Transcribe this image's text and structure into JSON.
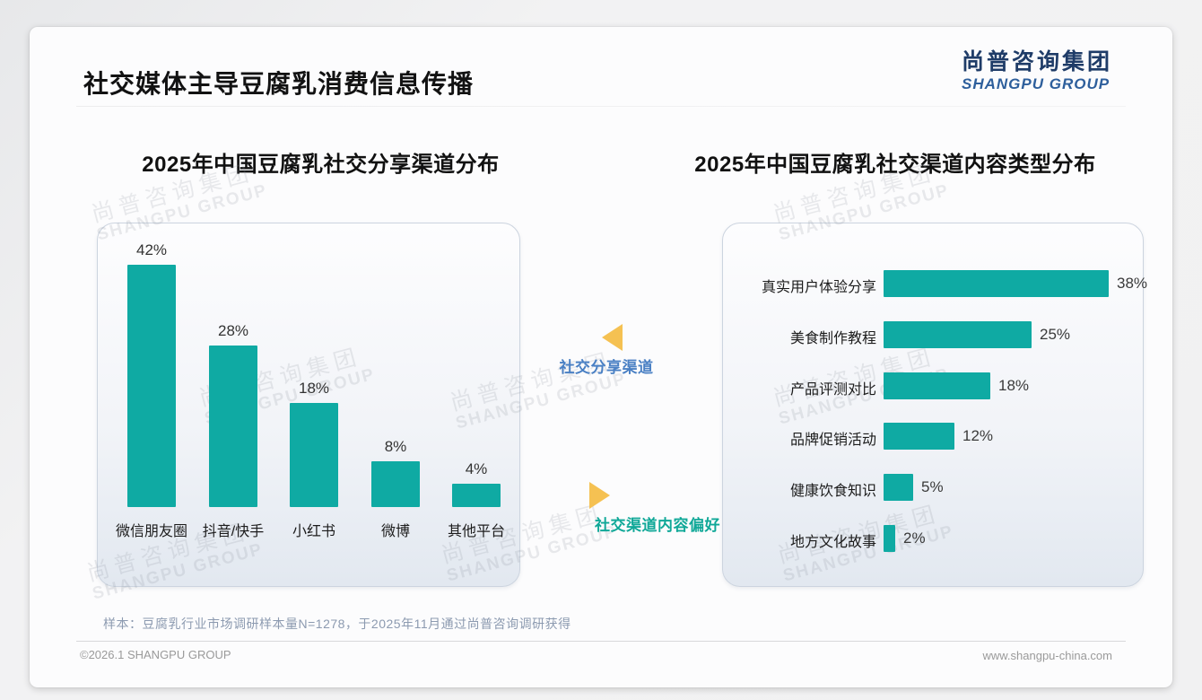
{
  "page": {
    "title": "社交媒体主导豆腐乳消费信息传播",
    "footnote": "样本：豆腐乳行业市场调研样本量N=1278，于2025年11月通过尚普咨询调研获得",
    "footer_left": "©2026.1 SHANGPU GROUP",
    "footer_right": "www.shangpu-china.com"
  },
  "logo": {
    "cn": "尚普咨询集团",
    "en": "SHANGPU GROUP"
  },
  "watermark": {
    "cn": "尚普咨询集团",
    "en": "SHANGPU GROUP"
  },
  "annotations": [
    {
      "label": "社交分享渠道",
      "color": "#4a80c4",
      "arrow": "left",
      "arrow_color": "#f5c152"
    },
    {
      "label": "社交渠道内容偏好",
      "color": "#10a898",
      "arrow": "right",
      "arrow_color": "#f5c152"
    }
  ],
  "chart_data": [
    {
      "type": "bar",
      "title": "2025年中国豆腐乳社交分享渠道分布",
      "categories": [
        "微信朋友圈",
        "抖音/快手",
        "小红书",
        "微博",
        "其他平台"
      ],
      "values": [
        42,
        28,
        18,
        8,
        4
      ],
      "unit": "%",
      "data_labels": [
        "42%",
        "28%",
        "18%",
        "8%",
        "4%"
      ],
      "bar_color": "#0faaa3",
      "ylim": [
        0,
        45
      ],
      "grid": false,
      "legend": "none"
    },
    {
      "type": "bar",
      "orientation": "horizontal",
      "title": "2025年中国豆腐乳社交渠道内容类型分布",
      "categories": [
        "真实用户体验分享",
        "美食制作教程",
        "产品评测对比",
        "品牌促销活动",
        "健康饮食知识",
        "地方文化故事"
      ],
      "values": [
        38,
        25,
        18,
        12,
        5,
        2
      ],
      "unit": "%",
      "data_labels": [
        "38%",
        "25%",
        "18%",
        "12%",
        "5%",
        "2%"
      ],
      "bar_color": "#0faaa3",
      "xlim": [
        0,
        40
      ],
      "grid": false,
      "legend": "none"
    }
  ]
}
